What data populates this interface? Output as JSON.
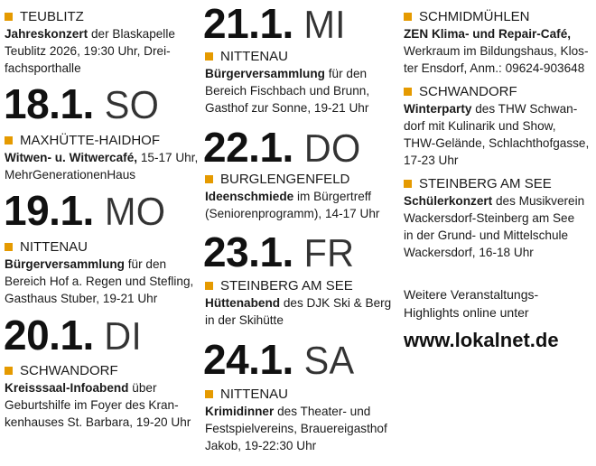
{
  "accent_color": "#e59a00",
  "dates": [
    {
      "num": "18.1.",
      "weekday": "SO"
    },
    {
      "num": "19.1.",
      "weekday": "MO"
    },
    {
      "num": "20.1.",
      "weekday": "DI"
    },
    {
      "num": "21.1.",
      "weekday": "MI"
    },
    {
      "num": "22.1.",
      "weekday": "DO"
    },
    {
      "num": "23.1.",
      "weekday": "FR"
    },
    {
      "num": "24.1.",
      "weekday": "SA"
    }
  ],
  "events": [
    {
      "town": "TEUBLITZ",
      "title": "Jahreskonzert",
      "text": " der Blaskapelle\nTeublitz 2026, 19:30 Uhr, Drei-\nfachsporthalle"
    },
    {
      "town": "MAXHÜTTE-HAIDHOF",
      "title": "Witwen- u. Witwercafé,",
      "text": " 15-17 Uhr,\nMehrGenerationenHaus"
    },
    {
      "town": "NITTENAU",
      "title": "Bürgerversammlung",
      "text": " für den\nBereich Hof a. Regen und Stefling,\nGasthaus Stuber, 19-21 Uhr"
    },
    {
      "town": "SCHWANDORF",
      "title": "Kreisssaal-Infoabend",
      "text": " über\nGeburtshilfe im Foyer des Kran-\nkenhauses St. Barbara, 19-20 Uhr"
    },
    {
      "town": "NITTENAU",
      "title": "Bürgerversammlung",
      "text": " für den\nBereich Fischbach und Brunn,\nGasthof zur Sonne, 19-21 Uhr"
    },
    {
      "town": "BURGLENGENFELD",
      "title": "Ideenschmiede",
      "text": " im Bürgertreff\n(Seniorenprogramm), 14-17 Uhr"
    },
    {
      "town": "STEINBERG AM SEE",
      "title": "Hüttenabend",
      "text": " des DJK Ski & Berg\nin der Skihütte"
    },
    {
      "town": "NITTENAU",
      "title": "Krimidinner",
      "text": " des Theater- und\nFestspielvereins, Brauereigasthof\nJakob, 19-22:30 Uhr"
    },
    {
      "town": "SCHMIDMÜHLEN",
      "title": "ZEN Klima- und Repair-Café,",
      "text": "\nWerkraum im Bildungshaus, Klos-\nter Ensdorf, Anm.: 09624-903648"
    },
    {
      "town": "SCHWANDORF",
      "title": "Winterparty",
      "text": " des THW Schwan-\ndorf mit Kulinarik und Show,\nTHW-Gelände, Schlachthofgasse,\n17-23 Uhr"
    },
    {
      "town": "STEINBERG AM SEE",
      "title": "Schülerkonzert",
      "text": " des Musikverein\nWackersdorf-Steinberg am See\nin der Grund- und Mittelschule\nWackersdorf, 16-18 Uhr"
    }
  ],
  "footer": {
    "more_text": "Weitere Veranstaltungs-\nHighlights online unter",
    "link": "www.lokalnet.de"
  }
}
